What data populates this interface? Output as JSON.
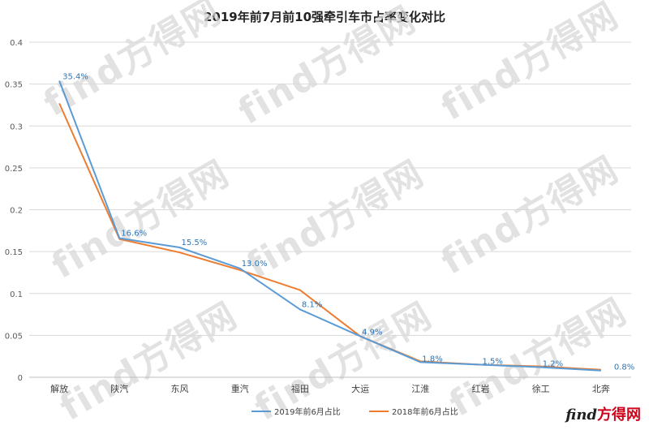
{
  "chart_data": {
    "type": "line",
    "title": "2019年前7月前10强牵引车市占率变化对比",
    "categories": [
      "解放",
      "陕汽",
      "东风",
      "重汽",
      "福田",
      "大运",
      "江淮",
      "红岩",
      "徐工",
      "北奔"
    ],
    "ylim": [
      0,
      0.4
    ],
    "yticks": [
      "0",
      "0.05",
      "0.1",
      "0.15",
      "0.2",
      "0.25",
      "0.3",
      "0.35",
      "0.4"
    ],
    "grid": true,
    "legend_position": "bottom",
    "series": [
      {
        "name": "2019年前6月占比",
        "color": "#5b9bd5",
        "values": [
          0.354,
          0.166,
          0.155,
          0.13,
          0.081,
          0.049,
          0.018,
          0.015,
          0.012,
          0.008
        ],
        "labels": [
          "35.4%",
          "16.6%",
          "15.5%",
          "13.0%",
          "8.1%",
          "4.9%",
          "1.8%",
          "1.5%",
          "1.2%",
          "0.8%"
        ]
      },
      {
        "name": "2018年前6月占比",
        "color": "#ed7d31",
        "values": [
          0.327,
          0.165,
          0.149,
          0.128,
          0.104,
          0.049,
          0.019,
          0.015,
          0.013,
          0.009
        ],
        "labels": []
      }
    ]
  },
  "watermark": {
    "text": "find方得网"
  },
  "logo": {
    "part1": "find",
    "part2": "方得网"
  }
}
